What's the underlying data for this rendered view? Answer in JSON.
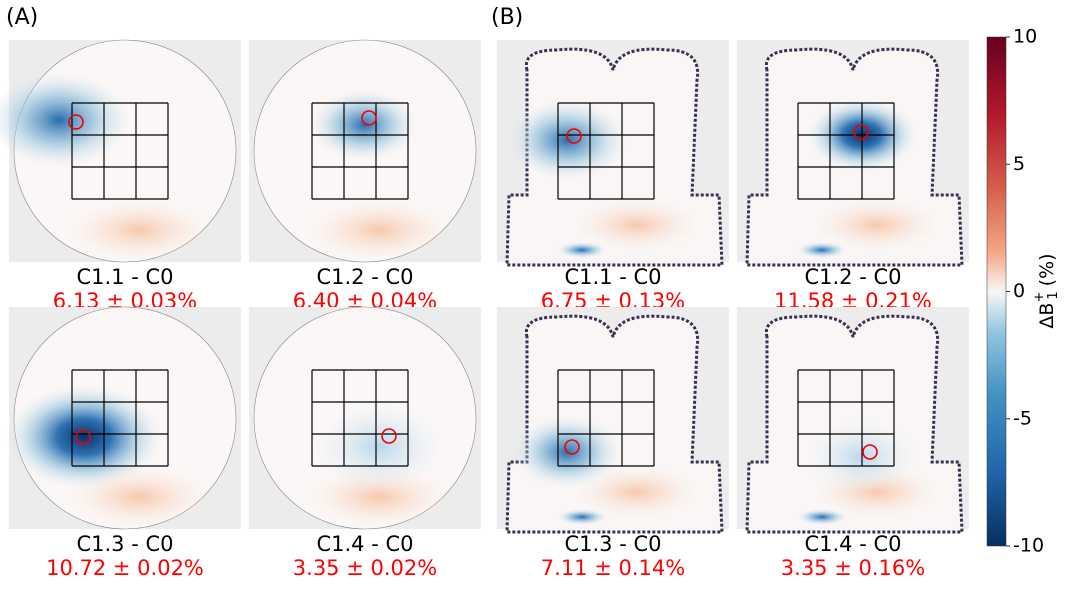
{
  "figure": {
    "panels": [
      {
        "label": "(A)",
        "images": [
          {
            "caption": "C1.1 - C0",
            "value": "6.13 ± 0.03%"
          },
          {
            "caption": "C1.2 - C0",
            "value": "6.40 ± 0.04%"
          },
          {
            "caption": "C1.3 - C0",
            "value": "10.72 ± 0.02%"
          },
          {
            "caption": "C1.4 - C0",
            "value": "3.35 ± 0.02%"
          }
        ]
      },
      {
        "label": "(B)",
        "images": [
          {
            "caption": "C1.1 - C0",
            "value": "6.75 ± 0.13%"
          },
          {
            "caption": "C1.2 - C0",
            "value": "11.58 ± 0.21%"
          },
          {
            "caption": "C1.3 - C0",
            "value": "7.11 ± 0.14%"
          },
          {
            "caption": "C1.4 - C0",
            "value": "3.35 ± 0.16%"
          }
        ]
      }
    ],
    "colorbar": {
      "label": {
        "main": "ΔB",
        "sup": "+",
        "sub": "1",
        "unit": "(%)"
      },
      "lim": [
        -10,
        10
      ],
      "ticks": [
        -10,
        -5,
        0,
        5,
        10
      ]
    }
  }
}
